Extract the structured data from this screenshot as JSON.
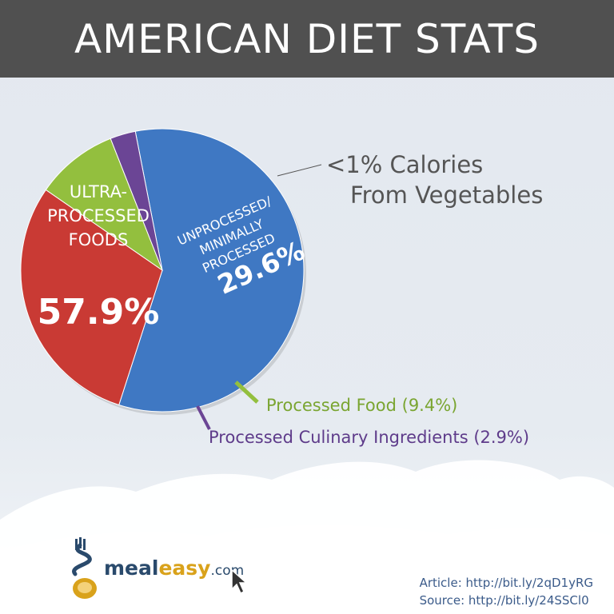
{
  "title": "AMERICAN DIET STATS",
  "chart_data": {
    "type": "pie",
    "slices": [
      {
        "label": "ULTRA-PROCESSED FOODS",
        "value": 57.9,
        "display": "57.9%",
        "color": "#3f78c3"
      },
      {
        "label": "UNPROCESSED/ MINIMALLY PROCESSED",
        "value": 29.6,
        "display": "29.6%",
        "color": "#c93a34"
      },
      {
        "label": "Processed Food (9.4%)",
        "value": 9.4,
        "color": "#93bf3e"
      },
      {
        "label": "Processed Culinary Ingredients (2.9%)",
        "value": 2.9,
        "color": "#6b4595"
      }
    ],
    "annotation": [
      "<1% Calories",
      "From Vegetables"
    ]
  },
  "logo": {
    "meal": "meal",
    "easy": "easy",
    "dotcom": ".com"
  },
  "credits": {
    "article": "Article: http://bit.ly/2qD1yRG",
    "source": "Source: http://bit.ly/24SSCl0"
  }
}
